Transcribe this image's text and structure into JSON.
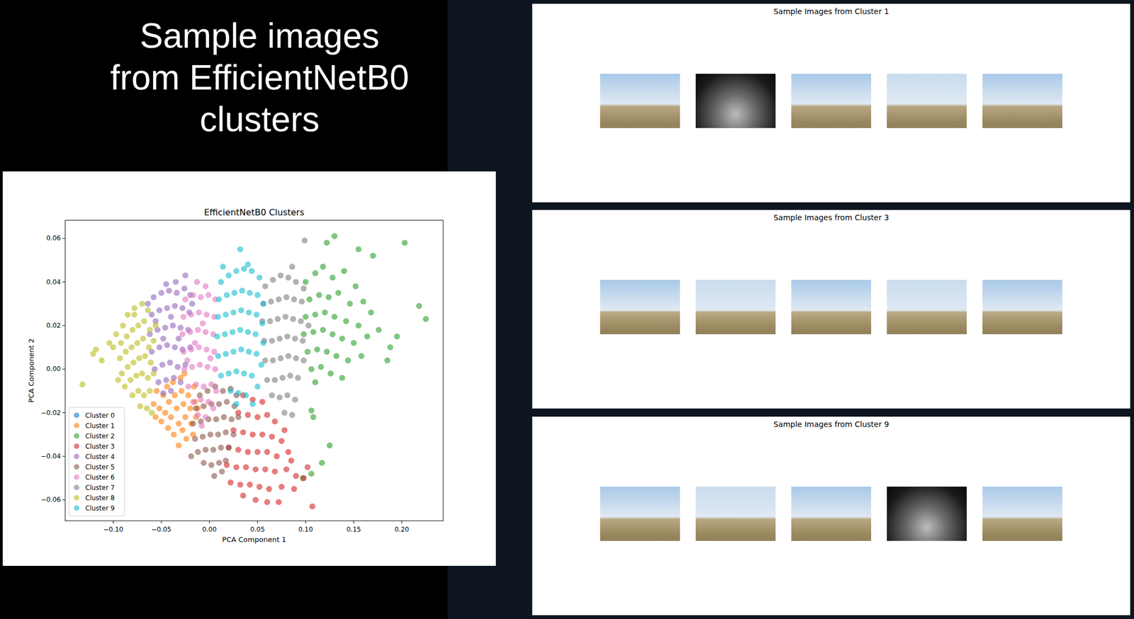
{
  "slide": {
    "title_lines": [
      "Sample images",
      "from EfficientNetB0",
      "clusters"
    ],
    "panels": [
      {
        "title": "Sample Images from Cluster 1",
        "image_count": 5
      },
      {
        "title": "Sample Images from Cluster 3",
        "image_count": 5
      },
      {
        "title": "Sample Images from Cluster 9",
        "image_count": 5
      }
    ]
  },
  "chart_data": {
    "type": "scatter",
    "title": "EfficientNetB0 Clusters",
    "x_label": "PCA Component 1",
    "y_label": "PCA Component 2",
    "xlim": [
      -0.15,
      0.243
    ],
    "ylim": [
      -0.0696,
      0.0683
    ],
    "xticks": [
      {
        "value": -0.1,
        "label": "−0.10"
      },
      {
        "value": -0.05,
        "label": "−0.05"
      },
      {
        "value": 0,
        "label": "0.00"
      },
      {
        "value": 0.05,
        "label": "0.05"
      },
      {
        "value": 0.1,
        "label": "0.10"
      },
      {
        "value": 0.15,
        "label": "0.15"
      },
      {
        "value": 0.2,
        "label": "0.20"
      }
    ],
    "yticks": [
      {
        "value": -0.06,
        "label": "−0.06"
      },
      {
        "value": -0.04,
        "label": "−0.04"
      },
      {
        "value": -0.02,
        "label": "−0.02"
      },
      {
        "value": 0,
        "label": "0.00"
      },
      {
        "value": 0.02,
        "label": "0.02"
      },
      {
        "value": 0.04,
        "label": "0.04"
      },
      {
        "value": 0.06,
        "label": "0.06"
      }
    ],
    "grid": false,
    "legend": "lower left",
    "marker": "circle",
    "series": [
      {
        "name": "Cluster 0",
        "color": "#1f77b4",
        "x": [],
        "values": []
      },
      {
        "name": "Cluster 1",
        "color": "#ff7f0e",
        "x": [
          -0.055,
          -0.058,
          -0.052,
          -0.048,
          -0.046,
          -0.044,
          -0.042,
          -0.04,
          -0.038,
          -0.036,
          -0.034,
          -0.032,
          -0.03,
          -0.029,
          -0.027,
          -0.025,
          -0.028,
          -0.022,
          -0.02,
          -0.019,
          -0.016,
          -0.015,
          -0.014,
          -0.017,
          -0.024,
          -0.032,
          -0.037,
          -0.05,
          -0.056,
          -0.043,
          -0.012,
          -0.026
        ],
        "values": [
          -0.01,
          -0.016,
          -0.018,
          -0.012,
          -0.02,
          -0.008,
          -0.015,
          -0.022,
          -0.006,
          -0.012,
          -0.018,
          -0.025,
          -0.004,
          -0.01,
          -0.016,
          -0.022,
          -0.028,
          -0.012,
          -0.018,
          -0.025,
          -0.008,
          -0.015,
          -0.022,
          -0.03,
          -0.032,
          -0.035,
          -0.03,
          -0.024,
          -0.022,
          -0.027,
          -0.018,
          -0.002
        ]
      },
      {
        "name": "Cluster 2",
        "color": "#2ca02c",
        "x": [
          0.1,
          0.11,
          0.118,
          0.128,
          0.14,
          0.152,
          0.104,
          0.114,
          0.124,
          0.134,
          0.146,
          0.16,
          0.1,
          0.11,
          0.12,
          0.13,
          0.142,
          0.155,
          0.168,
          0.098,
          0.108,
          0.118,
          0.128,
          0.138,
          0.15,
          0.164,
          0.102,
          0.112,
          0.122,
          0.132,
          0.144,
          0.158,
          0.106,
          0.116,
          0.126,
          0.138,
          0.11,
          0.185,
          0.188,
          0.176,
          0.203,
          0.225,
          0.218,
          0.13,
          0.122,
          0.17,
          0.117,
          0.106,
          0.125,
          0.106,
          0.108,
          0.097,
          0.155,
          0.195
        ],
        "values": [
          0.04,
          0.044,
          0.047,
          0.042,
          0.045,
          0.038,
          0.032,
          0.034,
          0.033,
          0.035,
          0.03,
          0.031,
          0.024,
          0.025,
          0.026,
          0.024,
          0.022,
          0.02,
          0.026,
          0.016,
          0.017,
          0.018,
          0.016,
          0.014,
          0.012,
          0.015,
          0.008,
          0.009,
          0.008,
          0.006,
          0.004,
          0.006,
          0.0,
          0.001,
          -0.002,
          -0.004,
          -0.006,
          0.004,
          0.01,
          0.018,
          0.058,
          0.023,
          0.029,
          0.061,
          0.058,
          0.052,
          -0.043,
          -0.048,
          -0.035,
          -0.019,
          -0.022,
          -0.05,
          0.055,
          0.015
        ]
      },
      {
        "name": "Cluster 3",
        "color": "#d62728",
        "x": [
          0.035,
          0.045,
          0.055,
          0.03,
          0.04,
          0.05,
          0.06,
          0.068,
          0.025,
          0.035,
          0.045,
          0.055,
          0.065,
          0.075,
          0.02,
          0.03,
          0.04,
          0.05,
          0.06,
          0.07,
          0.082,
          0.018,
          0.028,
          0.038,
          0.048,
          0.058,
          0.068,
          0.08,
          0.09,
          0.022,
          0.032,
          0.042,
          0.052,
          0.062,
          0.075,
          0.088,
          0.035,
          0.048,
          0.06,
          0.072,
          0.098,
          0.107,
          0.102,
          0.085,
          0.078
        ],
        "values": [
          -0.012,
          -0.014,
          -0.015,
          -0.02,
          -0.021,
          -0.022,
          -0.021,
          -0.024,
          -0.028,
          -0.029,
          -0.03,
          -0.03,
          -0.031,
          -0.033,
          -0.036,
          -0.037,
          -0.038,
          -0.038,
          -0.038,
          -0.04,
          -0.038,
          -0.044,
          -0.045,
          -0.045,
          -0.046,
          -0.046,
          -0.047,
          -0.046,
          -0.049,
          -0.052,
          -0.053,
          -0.053,
          -0.054,
          -0.055,
          -0.054,
          -0.055,
          -0.058,
          -0.06,
          -0.061,
          -0.061,
          -0.05,
          -0.063,
          -0.045,
          -0.042,
          -0.028
        ]
      },
      {
        "name": "Cluster 4",
        "color": "#9467bd",
        "x": [
          -0.058,
          -0.05,
          -0.042,
          -0.034,
          -0.026,
          -0.02,
          -0.025,
          -0.035,
          -0.045,
          -0.06,
          -0.052,
          -0.044,
          -0.036,
          -0.028,
          -0.021,
          -0.062,
          -0.054,
          -0.046,
          -0.038,
          -0.03,
          -0.022,
          -0.06,
          -0.052,
          -0.044,
          -0.036,
          -0.028,
          -0.02,
          -0.057,
          -0.049,
          -0.041,
          -0.033,
          -0.025,
          -0.053,
          -0.045,
          -0.037,
          -0.03,
          -0.048,
          -0.04,
          -0.056,
          -0.04,
          -0.032,
          -0.048,
          -0.018,
          -0.064
        ],
        "values": [
          0.033,
          0.035,
          0.036,
          0.035,
          0.037,
          0.034,
          0.043,
          0.04,
          0.039,
          0.025,
          0.027,
          0.028,
          0.029,
          0.028,
          0.026,
          0.016,
          0.018,
          0.019,
          0.02,
          0.019,
          0.018,
          0.008,
          0.01,
          0.011,
          0.01,
          0.009,
          0.01,
          0.0,
          0.002,
          0.003,
          0.001,
          0.002,
          -0.006,
          -0.005,
          -0.004,
          -0.006,
          -0.011,
          -0.01,
          0.022,
          0.024,
          0.014,
          0.014,
          0.03,
          0.03
        ]
      },
      {
        "name": "Cluster 5",
        "color": "#8c564b",
        "x": [
          -0.01,
          -0.002,
          0.006,
          0.014,
          0.022,
          0.028,
          -0.014,
          -0.006,
          0.002,
          0.01,
          0.018,
          0.026,
          -0.017,
          -0.009,
          -0.001,
          0.007,
          0.015,
          0.023,
          0.03,
          -0.015,
          -0.007,
          0.001,
          0.009,
          0.017,
          0.025,
          -0.012,
          -0.004,
          0.004,
          0.012,
          0.02,
          -0.006,
          0.002,
          0.01,
          0.017,
          0.005,
          -0.019,
          0.013
        ],
        "values": [
          -0.012,
          -0.01,
          -0.008,
          -0.01,
          -0.009,
          -0.012,
          -0.018,
          -0.017,
          -0.016,
          -0.016,
          -0.015,
          -0.017,
          -0.025,
          -0.024,
          -0.023,
          -0.023,
          -0.022,
          -0.023,
          -0.022,
          -0.032,
          -0.031,
          -0.03,
          -0.03,
          -0.029,
          -0.03,
          -0.038,
          -0.037,
          -0.037,
          -0.036,
          -0.036,
          -0.043,
          -0.044,
          -0.043,
          -0.042,
          -0.049,
          -0.04,
          -0.047
        ]
      },
      {
        "name": "Cluster 6",
        "color": "#e377c2",
        "x": [
          -0.025,
          -0.017,
          -0.009,
          -0.001,
          0.006,
          -0.013,
          -0.004,
          -0.027,
          -0.019,
          -0.011,
          -0.003,
          0.005,
          -0.028,
          -0.02,
          -0.012,
          -0.004,
          0.004,
          -0.027,
          -0.019,
          -0.011,
          -0.003,
          0.005,
          -0.026,
          -0.018,
          -0.01,
          -0.002,
          0.006,
          -0.022,
          -0.014,
          -0.006,
          0.002,
          0.007,
          -0.017,
          -0.009,
          -0.001,
          0.004,
          -0.012,
          -0.004,
          -0.008,
          -0.015,
          -0.007,
          0.001,
          -0.023
        ],
        "values": [
          0.032,
          0.034,
          0.033,
          0.034,
          0.032,
          0.04,
          0.038,
          0.024,
          0.025,
          0.026,
          0.025,
          0.024,
          0.016,
          0.017,
          0.018,
          0.017,
          0.016,
          0.008,
          0.009,
          0.01,
          0.009,
          0.008,
          0.0,
          0.001,
          0.002,
          0.001,
          0.0,
          -0.008,
          -0.007,
          -0.008,
          -0.007,
          -0.01,
          -0.015,
          -0.014,
          -0.015,
          -0.018,
          -0.021,
          -0.022,
          -0.026,
          0.012,
          0.021,
          0.005,
          0.004
        ]
      },
      {
        "name": "Cluster 7",
        "color": "#7f7f7f",
        "x": [
          0.058,
          0.066,
          0.074,
          0.082,
          0.09,
          0.098,
          0.099,
          0.086,
          0.056,
          0.064,
          0.072,
          0.08,
          0.088,
          0.096,
          0.055,
          0.063,
          0.071,
          0.079,
          0.087,
          0.095,
          0.103,
          0.057,
          0.065,
          0.073,
          0.081,
          0.089,
          0.097,
          0.058,
          0.066,
          0.074,
          0.082,
          0.09,
          0.098,
          0.06,
          0.068,
          0.076,
          0.084,
          0.092,
          0.065,
          0.073,
          0.081,
          0.089,
          0.078,
          0.086
        ],
        "values": [
          0.038,
          0.041,
          0.043,
          0.042,
          0.04,
          0.037,
          0.059,
          0.047,
          0.03,
          0.031,
          0.032,
          0.033,
          0.032,
          0.031,
          0.022,
          0.022,
          0.023,
          0.024,
          0.023,
          0.022,
          0.02,
          0.013,
          0.013,
          0.014,
          0.015,
          0.014,
          0.013,
          0.004,
          0.004,
          0.005,
          0.006,
          0.005,
          0.004,
          -0.005,
          -0.005,
          -0.004,
          -0.003,
          -0.004,
          -0.012,
          -0.013,
          -0.012,
          -0.014,
          -0.02,
          -0.021
        ]
      },
      {
        "name": "Cluster 8",
        "color": "#bcbd22",
        "x": [
          -0.09,
          -0.085,
          -0.078,
          -0.07,
          -0.064,
          -0.092,
          -0.086,
          -0.08,
          -0.074,
          -0.068,
          -0.062,
          -0.093,
          -0.087,
          -0.081,
          -0.075,
          -0.069,
          -0.063,
          -0.058,
          -0.091,
          -0.085,
          -0.079,
          -0.073,
          -0.067,
          -0.061,
          -0.088,
          -0.082,
          -0.076,
          -0.07,
          -0.064,
          -0.058,
          -0.08,
          -0.074,
          -0.068,
          -0.062,
          -0.072,
          -0.065,
          -0.06,
          -0.097,
          -0.1,
          -0.104,
          -0.112,
          -0.121,
          -0.132,
          -0.118,
          -0.095,
          -0.078,
          -0.056
        ],
        "values": [
          0.02,
          0.025,
          0.028,
          0.03,
          0.027,
          0.012,
          0.015,
          0.018,
          0.02,
          0.022,
          0.018,
          0.005,
          0.008,
          0.01,
          0.012,
          0.014,
          0.01,
          0.013,
          -0.002,
          0.001,
          0.003,
          0.005,
          0.006,
          0.003,
          -0.008,
          -0.005,
          -0.003,
          -0.002,
          -0.004,
          -0.002,
          -0.012,
          -0.01,
          -0.012,
          -0.01,
          -0.017,
          -0.018,
          -0.02,
          0.016,
          0.01,
          0.012,
          0.004,
          0.007,
          -0.007,
          0.009,
          -0.005,
          0.025,
          0.02
        ]
      },
      {
        "name": "Cluster 9",
        "color": "#17becf",
        "x": [
          0.012,
          0.02,
          0.028,
          0.036,
          0.044,
          0.052,
          0.032,
          0.04,
          0.01,
          0.018,
          0.026,
          0.034,
          0.042,
          0.05,
          0.056,
          0.009,
          0.017,
          0.025,
          0.033,
          0.041,
          0.049,
          0.055,
          0.008,
          0.016,
          0.024,
          0.032,
          0.04,
          0.048,
          0.056,
          0.009,
          0.017,
          0.025,
          0.033,
          0.041,
          0.049,
          0.054,
          0.012,
          0.02,
          0.028,
          0.036,
          0.044,
          0.05,
          0.022,
          0.03,
          0.038,
          0.045,
          0.028,
          0.014
        ],
        "values": [
          0.04,
          0.043,
          0.045,
          0.046,
          0.045,
          0.042,
          0.055,
          0.048,
          0.032,
          0.034,
          0.035,
          0.036,
          0.035,
          0.034,
          0.03,
          0.024,
          0.025,
          0.026,
          0.027,
          0.026,
          0.025,
          0.021,
          0.015,
          0.016,
          0.017,
          0.018,
          0.017,
          0.016,
          0.012,
          0.006,
          0.007,
          0.008,
          0.009,
          0.008,
          0.007,
          0.002,
          -0.003,
          -0.002,
          -0.001,
          -0.002,
          -0.003,
          -0.008,
          -0.01,
          -0.011,
          -0.012,
          -0.016,
          -0.016,
          0.047
        ]
      }
    ]
  }
}
